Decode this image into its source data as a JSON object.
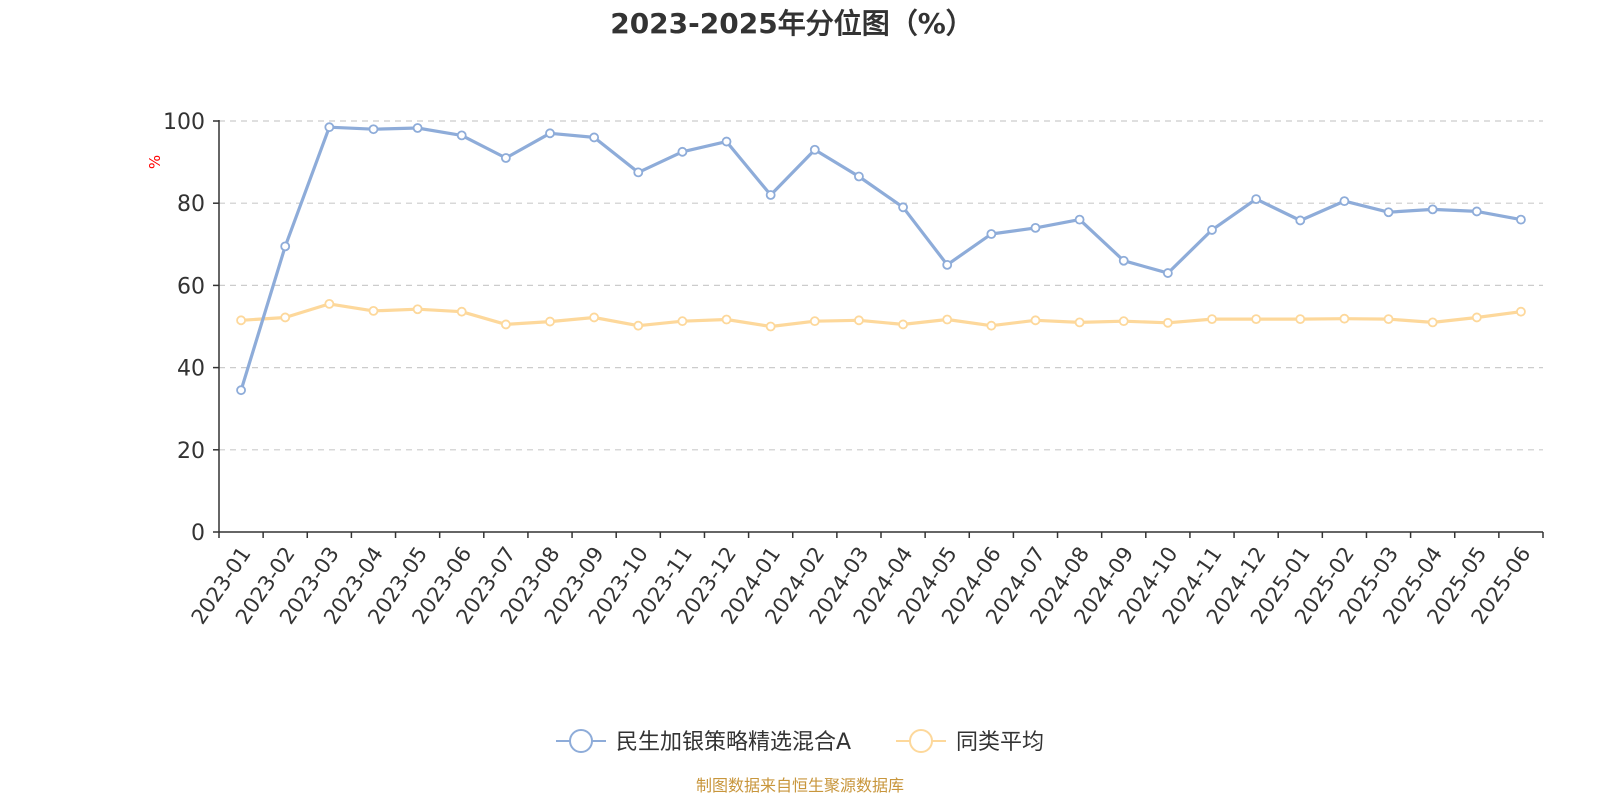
{
  "chart_data": {
    "type": "line",
    "title": "2023-2025年分位图（%）",
    "ylabel": "%",
    "xlabel": "",
    "ylim": [
      0,
      100
    ],
    "yticks": [
      0,
      20,
      40,
      60,
      80,
      100
    ],
    "grid": true,
    "legend_position": "bottom-center",
    "categories": [
      "2023-01",
      "2023-02",
      "2023-03",
      "2023-04",
      "2023-05",
      "2023-06",
      "2023-07",
      "2023-08",
      "2023-09",
      "2023-10",
      "2023-11",
      "2023-12",
      "2024-01",
      "2024-02",
      "2024-03",
      "2024-04",
      "2024-05",
      "2024-06",
      "2024-07",
      "2024-08",
      "2024-09",
      "2024-10",
      "2024-11",
      "2024-12",
      "2025-01",
      "2025-02",
      "2025-03",
      "2025-04",
      "2025-05",
      "2025-06"
    ],
    "series": [
      {
        "name": "民生加银策略精选混合A",
        "color": "#8eacd9",
        "values": [
          34.5,
          69.5,
          98.5,
          98.0,
          98.3,
          96.5,
          91.0,
          97.0,
          96.0,
          87.5,
          92.5,
          95.0,
          82.0,
          93.0,
          86.5,
          79.0,
          65.0,
          72.5,
          74.0,
          76.0,
          66.0,
          63.0,
          73.5,
          81.0,
          75.8,
          80.5,
          77.8,
          78.5,
          78.0,
          76.0
        ]
      },
      {
        "name": "同类平均",
        "color": "#fdd89b",
        "values": [
          51.5,
          52.2,
          55.5,
          53.8,
          54.2,
          53.6,
          50.5,
          51.2,
          52.2,
          50.2,
          51.3,
          51.7,
          50.0,
          51.3,
          51.5,
          50.5,
          51.7,
          50.2,
          51.5,
          51.0,
          51.3,
          50.9,
          51.8,
          51.8,
          51.8,
          51.9,
          51.8,
          51.0,
          52.2,
          53.6
        ]
      }
    ]
  },
  "footer": {
    "source": "制图数据来自恒生聚源数据库"
  }
}
